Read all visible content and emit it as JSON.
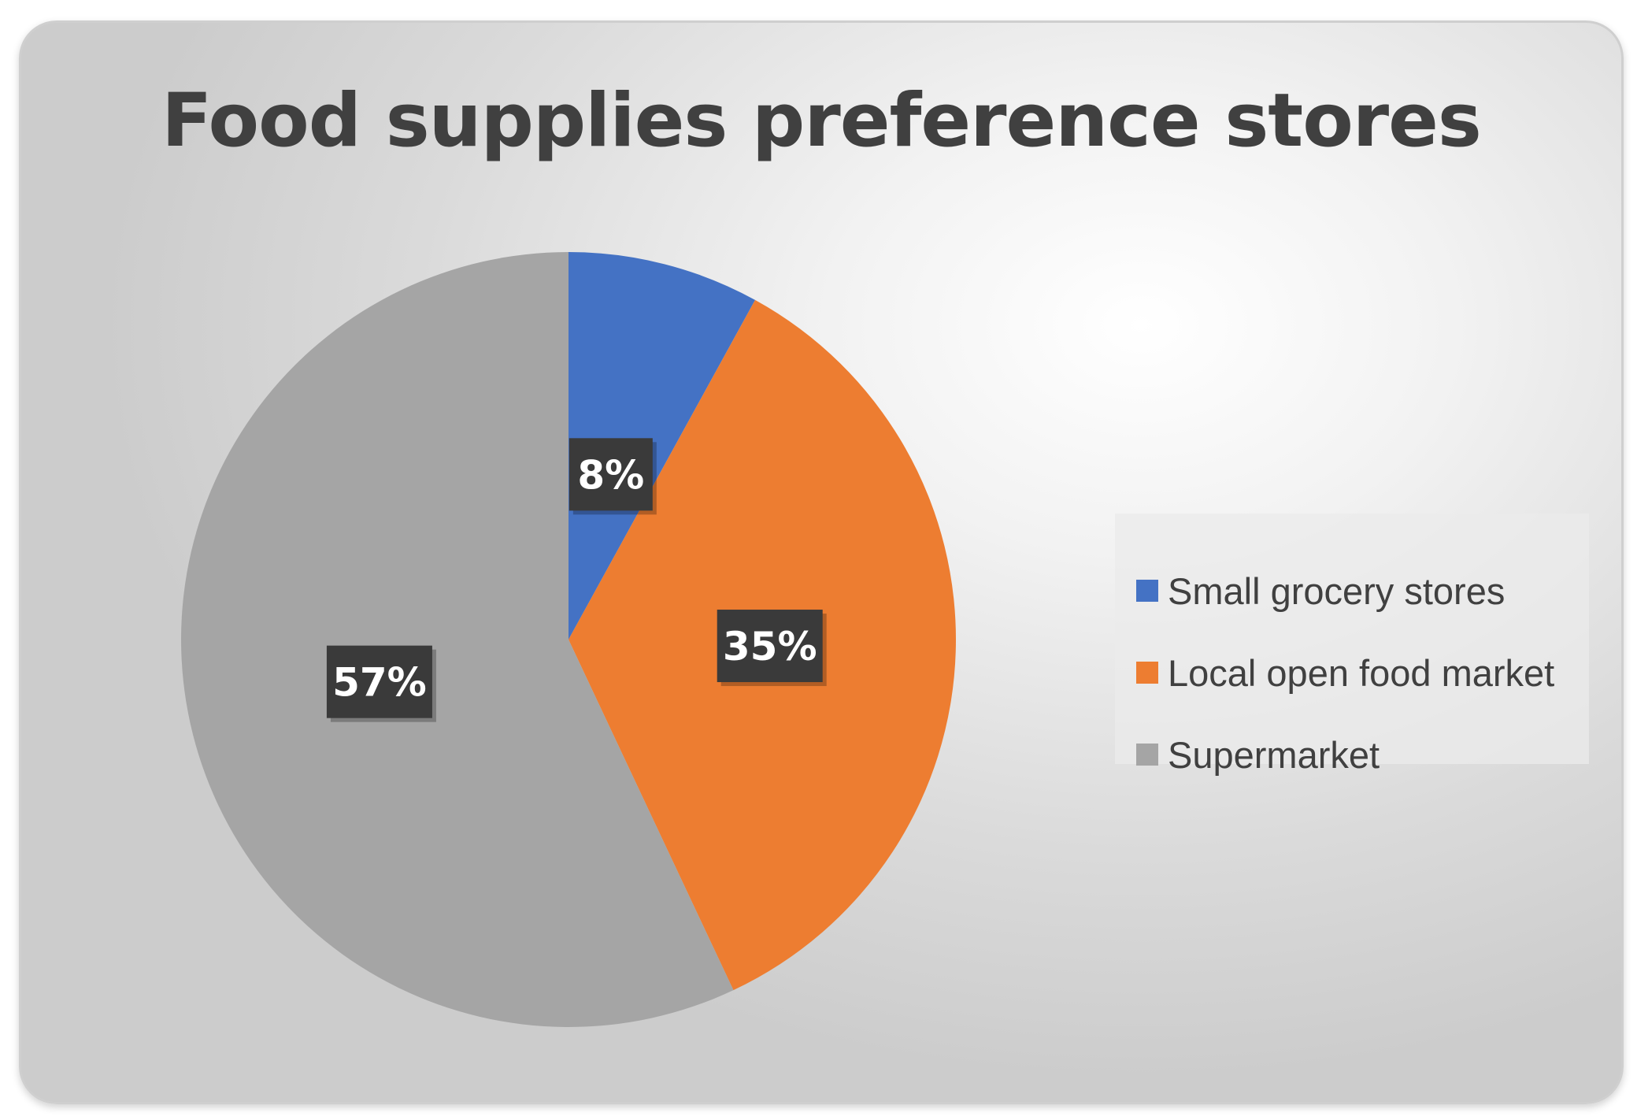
{
  "chart_data": {
    "type": "pie",
    "title": "Food supplies preference stores",
    "start_angle_deg": 0,
    "direction": "clockwise",
    "slices": [
      {
        "label": "Small grocery stores",
        "value": 8,
        "data_label": "8%",
        "color": "#4472C4"
      },
      {
        "label": "Local open food market",
        "value": 35,
        "data_label": "35%",
        "color": "#ED7D31"
      },
      {
        "label": "Supermarket",
        "value": 57,
        "data_label": "57%",
        "color": "#A5A5A5"
      }
    ],
    "legend_position": "right"
  }
}
